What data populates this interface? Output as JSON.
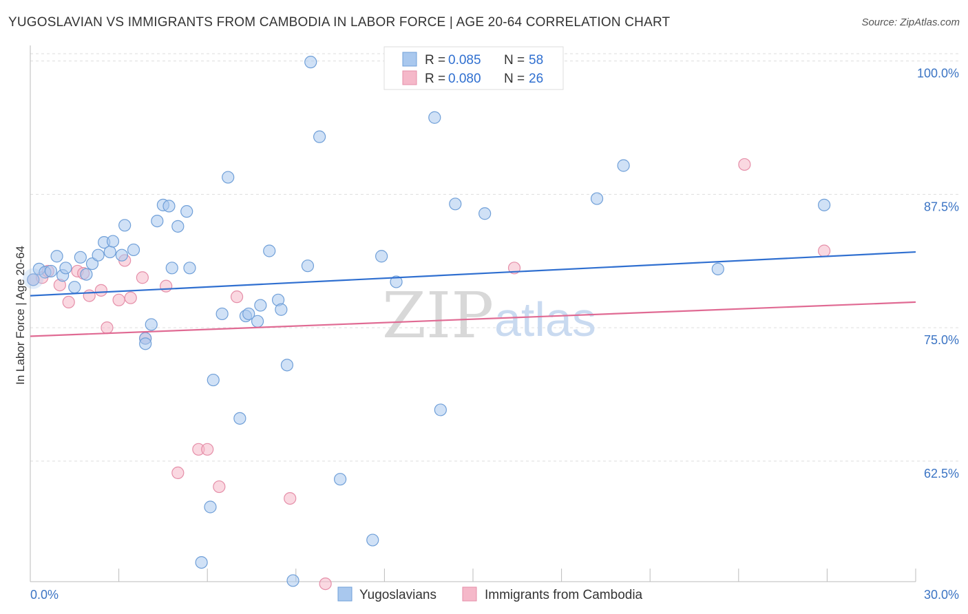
{
  "header": {
    "title": "YUGOSLAVIAN VS IMMIGRANTS FROM CAMBODIA IN LABOR FORCE | AGE 20-64 CORRELATION CHART",
    "source": "Source: ZipAtlas.com"
  },
  "watermark": {
    "zip": "ZIP",
    "atlas": "atlas"
  },
  "legend_box": {
    "rows": [
      {
        "r_label": "R = ",
        "r_value": "0.085",
        "n_label": "N = ",
        "n_value": "58"
      },
      {
        "r_label": "R = ",
        "r_value": "0.080",
        "n_label": "N = ",
        "n_value": "26"
      }
    ]
  },
  "colors": {
    "blue_fill": "#a9c8ee",
    "blue_stroke": "#6f9fd8",
    "blue_line": "#2f6fd0",
    "pink_fill": "#f5b8c9",
    "pink_stroke": "#e58ea8",
    "pink_line": "#e06a93",
    "grid": "#dddddd",
    "axis_label": "#3b74c4"
  },
  "chart_data": {
    "type": "scatter",
    "title": "YUGOSLAVIAN VS IMMIGRANTS FROM CAMBODIA IN LABOR FORCE | AGE 20-64 CORRELATION CHART",
    "xlabel": "",
    "ylabel": "In Labor Force | Age 20-64",
    "xlim": [
      0,
      30
    ],
    "ylim": [
      51.2,
      101.2
    ],
    "x_tick_labels": [
      "0.0%",
      "30.0%"
    ],
    "y_ticks": [
      62.5,
      75.0,
      87.5,
      100.0
    ],
    "y_tick_labels": [
      "62.5%",
      "75.0%",
      "87.5%",
      "100.0%"
    ],
    "grid": true,
    "legend_position": "top-center",
    "series": [
      {
        "name": "Yugoslavians",
        "trend": {
          "start": [
            0,
            78.0
          ],
          "end": [
            30,
            82.1
          ]
        },
        "points": [
          [
            0.1,
            79.5
          ],
          [
            0.3,
            80.5
          ],
          [
            0.5,
            80.2
          ],
          [
            0.7,
            80.3
          ],
          [
            0.9,
            81.7
          ],
          [
            1.1,
            79.9
          ],
          [
            1.2,
            80.6
          ],
          [
            1.5,
            78.8
          ],
          [
            1.7,
            81.6
          ],
          [
            1.9,
            80.0
          ],
          [
            2.1,
            81.0
          ],
          [
            2.3,
            81.8
          ],
          [
            2.5,
            83.0
          ],
          [
            2.7,
            82.1
          ],
          [
            2.8,
            83.1
          ],
          [
            3.1,
            81.8
          ],
          [
            3.2,
            84.6
          ],
          [
            3.5,
            82.3
          ],
          [
            3.9,
            74.0
          ],
          [
            3.9,
            73.5
          ],
          [
            4.1,
            75.3
          ],
          [
            4.3,
            85.0
          ],
          [
            4.5,
            86.5
          ],
          [
            4.7,
            86.4
          ],
          [
            4.8,
            80.6
          ],
          [
            5.0,
            84.5
          ],
          [
            5.3,
            85.9
          ],
          [
            5.4,
            80.6
          ],
          [
            5.8,
            53.0
          ],
          [
            6.1,
            58.2
          ],
          [
            6.2,
            70.1
          ],
          [
            6.5,
            76.3
          ],
          [
            6.7,
            89.1
          ],
          [
            7.1,
            66.5
          ],
          [
            7.3,
            76.1
          ],
          [
            7.4,
            76.3
          ],
          [
            7.7,
            75.6
          ],
          [
            7.8,
            77.1
          ],
          [
            8.1,
            82.2
          ],
          [
            8.4,
            77.6
          ],
          [
            8.5,
            76.7
          ],
          [
            8.7,
            71.5
          ],
          [
            8.9,
            51.3
          ],
          [
            9.4,
            80.8
          ],
          [
            9.5,
            99.9
          ],
          [
            9.8,
            92.9
          ],
          [
            10.5,
            60.8
          ],
          [
            11.6,
            55.1
          ],
          [
            11.9,
            81.7
          ],
          [
            12.4,
            79.3
          ],
          [
            13.7,
            94.7
          ],
          [
            13.9,
            67.3
          ],
          [
            14.4,
            86.6
          ],
          [
            15.4,
            85.7
          ],
          [
            19.2,
            87.1
          ],
          [
            20.1,
            90.2
          ],
          [
            23.3,
            80.5
          ],
          [
            26.9,
            86.5
          ]
        ]
      },
      {
        "name": "Immigrants from Cambodia",
        "trend": {
          "start": [
            0,
            74.2
          ],
          "end": [
            30,
            77.4
          ]
        },
        "points": [
          [
            0.1,
            79.5
          ],
          [
            0.4,
            79.7
          ],
          [
            0.6,
            80.3
          ],
          [
            1.0,
            79.0
          ],
          [
            1.3,
            77.4
          ],
          [
            1.6,
            80.3
          ],
          [
            1.8,
            80.1
          ],
          [
            2.0,
            78.0
          ],
          [
            2.4,
            78.5
          ],
          [
            2.6,
            75.0
          ],
          [
            3.0,
            77.6
          ],
          [
            3.2,
            81.3
          ],
          [
            3.4,
            77.8
          ],
          [
            3.8,
            79.7
          ],
          [
            3.9,
            74.0
          ],
          [
            4.6,
            78.9
          ],
          [
            5.0,
            61.4
          ],
          [
            5.7,
            63.6
          ],
          [
            6.0,
            63.6
          ],
          [
            6.4,
            60.1
          ],
          [
            7.0,
            77.9
          ],
          [
            8.8,
            59.0
          ],
          [
            10.0,
            51.0
          ],
          [
            16.4,
            80.6
          ],
          [
            24.2,
            90.3
          ],
          [
            26.9,
            82.2
          ]
        ]
      }
    ]
  }
}
